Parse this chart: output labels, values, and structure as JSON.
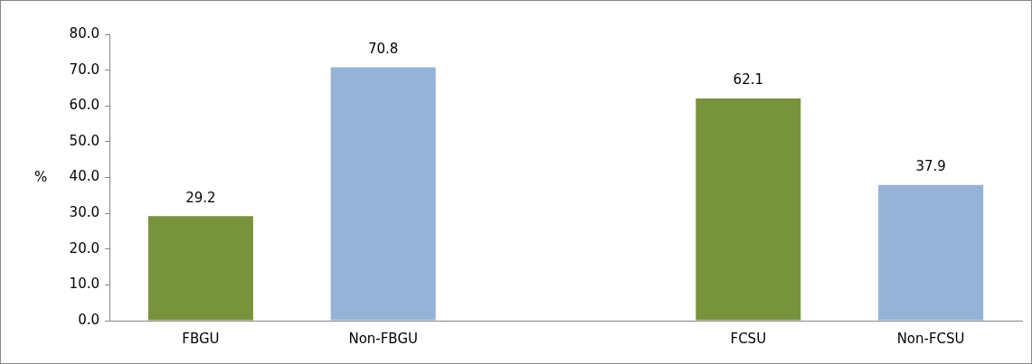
{
  "chart_data": {
    "type": "bar",
    "ylabel": "%",
    "categories": [
      "FBGU",
      "Non-FBGU",
      null,
      "FCSU",
      "Non-FCSU"
    ],
    "values": [
      29.2,
      70.8,
      null,
      62.1,
      37.9
    ],
    "colors": [
      "#77933c",
      "#95b3d7",
      null,
      "#77933c",
      "#95b3d7"
    ],
    "ylim": [
      0,
      80
    ],
    "yticks": [
      {
        "value": 0,
        "label": "0.0"
      },
      {
        "value": 10,
        "label": "10.0"
      },
      {
        "value": 20,
        "label": "20.0"
      },
      {
        "value": 30,
        "label": "30.0"
      },
      {
        "value": 40,
        "label": "40.0"
      },
      {
        "value": 50,
        "label": "50.0"
      },
      {
        "value": 60,
        "label": "60.0"
      },
      {
        "value": 70,
        "label": "70.0"
      },
      {
        "value": 80,
        "label": "80.0"
      }
    ],
    "data_labels": true,
    "grid": false,
    "legend": false
  }
}
